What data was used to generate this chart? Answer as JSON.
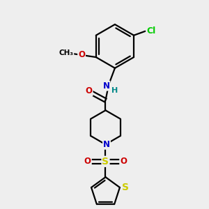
{
  "bg_color": "#eeeeee",
  "bond_color": "#000000",
  "n_color": "#0000cc",
  "o_color": "#cc0000",
  "s_color": "#cccc00",
  "cl_color": "#00cc00",
  "lw": 1.6,
  "figsize": [
    3.0,
    3.0
  ],
  "dpi": 100,
  "xlim": [
    0,
    10
  ],
  "ylim": [
    0,
    10
  ]
}
